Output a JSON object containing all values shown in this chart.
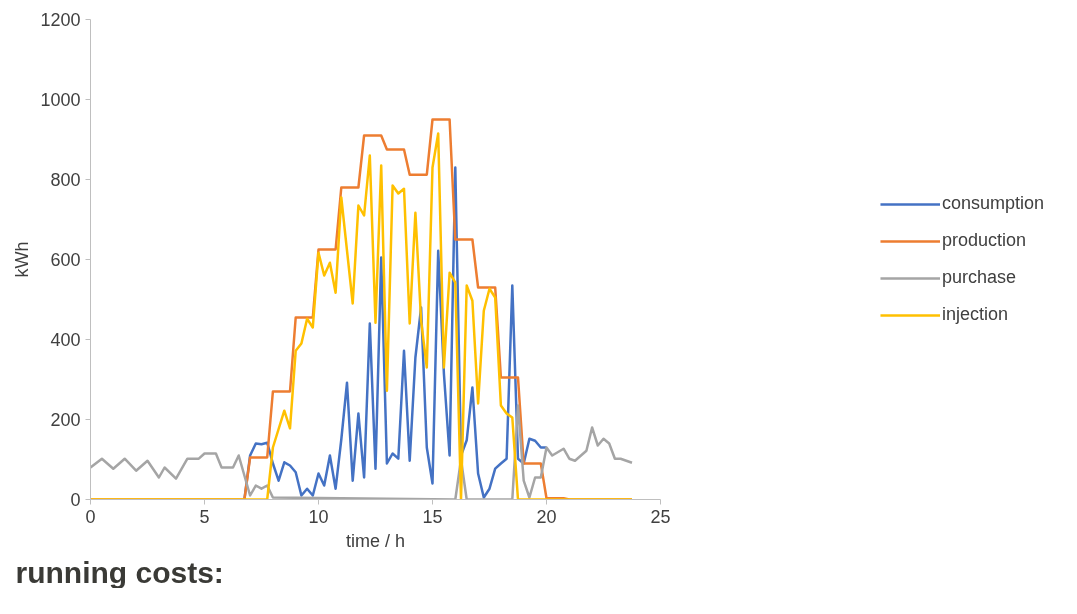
{
  "chart_data": {
    "type": "line",
    "xlabel": "time / h",
    "ylabel": "kWh",
    "xlim": [
      0,
      25
    ],
    "xticks": [
      0,
      5,
      10,
      15,
      20,
      25
    ],
    "ylim": [
      0,
      1200
    ],
    "yticks": [
      0,
      200,
      400,
      600,
      800,
      1000,
      1200
    ],
    "grid": false,
    "legend": "right",
    "line_style": "solid",
    "marker": "none",
    "annotations": [
      "running costs:"
    ],
    "series": [
      {
        "name": "consumption",
        "color": "#4472c4",
        "x": [
          6.75,
          7.0,
          7.25,
          7.5,
          7.75,
          8.0,
          8.25,
          8.5,
          8.75,
          9.0,
          9.25,
          9.5,
          9.75,
          10.0,
          10.25,
          10.5,
          10.75,
          11.0,
          11.25,
          11.5,
          11.75,
          12.0,
          12.25,
          12.5,
          12.75,
          13.0,
          13.25,
          13.5,
          13.75,
          14.0,
          14.25,
          14.5,
          14.75,
          15.0,
          15.25,
          15.5,
          15.75,
          16.0,
          16.25,
          16.5,
          16.75,
          17.0,
          17.25,
          17.5,
          17.75,
          18.0,
          18.25,
          18.5,
          18.75,
          19.0,
          19.25,
          19.5,
          19.75,
          20.0
        ],
        "values": [
          0,
          110,
          140,
          138,
          142,
          90,
          47,
          93,
          85,
          68,
          10,
          27,
          10,
          65,
          35,
          110,
          27,
          150,
          292,
          47,
          215,
          55,
          440,
          77,
          605,
          90,
          115,
          102,
          372,
          97,
          355,
          480,
          130,
          40,
          622,
          315,
          110,
          830,
          110,
          148,
          280,
          65,
          5,
          27,
          77,
          90,
          102,
          535,
          102,
          90,
          152,
          147,
          130,
          130
        ]
      },
      {
        "name": "production",
        "color": "#ed7d31",
        "x": [
          0,
          6.75,
          7.0,
          7.75,
          8.0,
          8.75,
          9.0,
          9.75,
          10.0,
          10.75,
          11.0,
          11.75,
          12.0,
          12.75,
          13.0,
          13.75,
          14.0,
          14.75,
          15.0,
          15.75,
          16.0,
          16.75,
          17.0,
          17.75,
          18.0,
          18.75,
          19.0,
          19.75,
          20.0,
          20.75,
          21.0,
          23.75
        ],
        "values": [
          0,
          0,
          105,
          105,
          270,
          270,
          455,
          455,
          625,
          625,
          780,
          780,
          910,
          910,
          875,
          875,
          812,
          812,
          950,
          950,
          650,
          650,
          530,
          530,
          305,
          305,
          90,
          90,
          3,
          3,
          0,
          0
        ]
      },
      {
        "name": "purchase",
        "color": "#a5a5a5",
        "x": [
          0,
          0.5,
          1.0,
          1.5,
          2.0,
          2.5,
          3.0,
          3.25,
          3.75,
          4.25,
          4.75,
          5.0,
          5.5,
          5.75,
          6.25,
          6.5,
          7.0,
          7.25,
          7.5,
          7.75,
          8.0,
          16.0,
          16.25,
          16.5,
          18.5,
          18.75,
          19.0,
          19.25,
          19.5,
          19.75,
          20.0,
          20.25,
          20.75,
          21.0,
          21.25,
          21.75,
          22.0,
          22.25,
          22.5,
          22.75,
          23.0,
          23.25,
          23.75
        ],
        "values": [
          80,
          102,
          77,
          102,
          72,
          97,
          55,
          80,
          52,
          102,
          102,
          115,
          115,
          80,
          80,
          110,
          10,
          35,
          27,
          35,
          5,
          0,
          100,
          0,
          0,
          235,
          47,
          5,
          55,
          55,
          130,
          110,
          127,
          102,
          97,
          122,
          180,
          135,
          152,
          140,
          102,
          102,
          92
        ]
      },
      {
        "name": "injection",
        "color": "#ffc000",
        "x": [
          0,
          7.75,
          8.0,
          8.5,
          8.75,
          9.0,
          9.25,
          9.5,
          9.75,
          10.0,
          10.25,
          10.5,
          10.75,
          11.0,
          11.5,
          11.75,
          12.0,
          12.25,
          12.5,
          12.75,
          13.0,
          13.25,
          13.5,
          13.75,
          14.0,
          14.25,
          14.5,
          14.75,
          15.0,
          15.25,
          15.5,
          15.75,
          16.0,
          16.25,
          16.5,
          16.75,
          17.0,
          17.25,
          17.5,
          17.75,
          18.0,
          18.25,
          18.5,
          18.75,
          23.75
        ],
        "values": [
          0,
          0,
          130,
          222,
          178,
          372,
          390,
          452,
          430,
          617,
          560,
          592,
          517,
          755,
          490,
          735,
          710,
          860,
          442,
          835,
          272,
          785,
          765,
          777,
          440,
          717,
          447,
          330,
          830,
          915,
          330,
          567,
          542,
          0,
          535,
          497,
          240,
          472,
          527,
          505,
          235,
          215,
          205,
          0,
          0
        ]
      }
    ]
  }
}
